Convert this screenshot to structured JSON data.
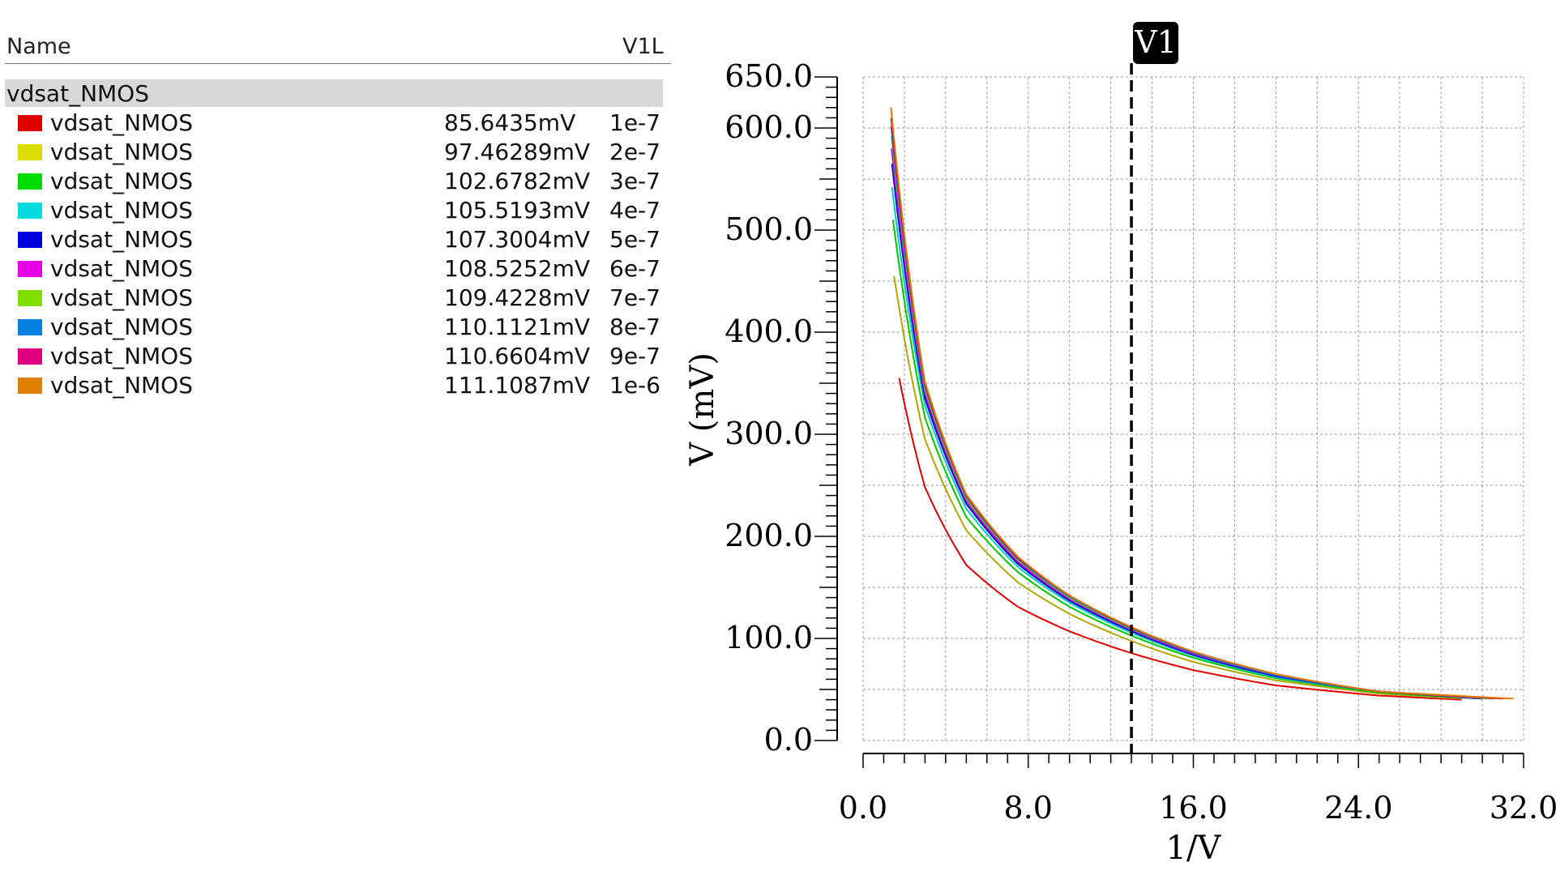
{
  "legend": {
    "header_name": "Name",
    "header_column": "V1L",
    "group": "vdsat_NMOS",
    "entries": [
      {
        "name": "vdsat_NMOS",
        "value": "85.6435mV",
        "param": "1e-7",
        "color": "#e00000"
      },
      {
        "name": "vdsat_NMOS",
        "value": "97.46289mV",
        "param": "2e-7",
        "color": "#dcdc00"
      },
      {
        "name": "vdsat_NMOS",
        "value": "102.6782mV",
        "param": "3e-7",
        "color": "#00dc00"
      },
      {
        "name": "vdsat_NMOS",
        "value": "105.5193mV",
        "param": "4e-7",
        "color": "#00dcdc"
      },
      {
        "name": "vdsat_NMOS",
        "value": "107.3004mV",
        "param": "5e-7",
        "color": "#0000dc"
      },
      {
        "name": "vdsat_NMOS",
        "value": "108.5252mV",
        "param": "6e-7",
        "color": "#e600e6"
      },
      {
        "name": "vdsat_NMOS",
        "value": "109.4228mV",
        "param": "7e-7",
        "color": "#80e000"
      },
      {
        "name": "vdsat_NMOS",
        "value": "110.1121mV",
        "param": "8e-7",
        "color": "#0080e0"
      },
      {
        "name": "vdsat_NMOS",
        "value": "110.6604mV",
        "param": "9e-7",
        "color": "#e00080"
      },
      {
        "name": "vdsat_NMOS",
        "value": "111.1087mV",
        "param": "1e-6",
        "color": "#e08000"
      }
    ]
  },
  "chart_data": {
    "type": "line",
    "xlabel": "1/V",
    "ylabel": "V (mV)",
    "xlim": [
      0,
      32
    ],
    "ylim": [
      0,
      650
    ],
    "xticks": [
      "0.0",
      "8.0",
      "16.0",
      "24.0",
      "32.0"
    ],
    "xtick_values": [
      0,
      8,
      16,
      24,
      32
    ],
    "yticks": [
      "0.0",
      "100.0",
      "200.0",
      "300.0",
      "400.0",
      "500.0",
      "600.0",
      "650.0"
    ],
    "ytick_values": [
      0,
      100,
      200,
      300,
      400,
      500,
      600,
      650
    ],
    "grid": true,
    "cursor": {
      "label": "V1",
      "x": 13.0
    },
    "series": [
      {
        "name": "vdsat_NMOS",
        "param": "1e-7",
        "color": "#e00000",
        "x": [
          1.75,
          3,
          5,
          7.5,
          10,
          13,
          16,
          20,
          25,
          29
        ],
        "y": [
          355,
          248,
          172,
          131,
          107,
          85.6,
          69,
          54,
          44,
          40
        ]
      },
      {
        "name": "vdsat_NMOS",
        "param": "2e-7",
        "color": "#b0a800",
        "x": [
          1.5,
          3,
          5,
          7.5,
          10,
          13,
          16,
          20,
          25,
          29
        ],
        "y": [
          455,
          295,
          206,
          155,
          124,
          97.5,
          77,
          59,
          46,
          41
        ]
      },
      {
        "name": "vdsat_NMOS",
        "param": "3e-7",
        "color": "#00c800",
        "x": [
          1.45,
          3,
          5,
          7.5,
          10,
          13,
          16,
          20,
          25,
          30
        ],
        "y": [
          510,
          316,
          219,
          165,
          131,
          102.7,
          81,
          61,
          47,
          41
        ]
      },
      {
        "name": "vdsat_NMOS",
        "param": "4e-7",
        "color": "#00c8c8",
        "x": [
          1.4,
          3,
          5,
          7.5,
          10,
          13,
          16,
          20,
          25,
          30
        ],
        "y": [
          542,
          328,
          227,
          170,
          135,
          105.5,
          83,
          62,
          48,
          41
        ]
      },
      {
        "name": "vdsat_NMOS",
        "param": "5e-7",
        "color": "#0000dc",
        "x": [
          1.4,
          3,
          5,
          7.5,
          10,
          13,
          16,
          20,
          25,
          30
        ],
        "y": [
          565,
          335,
          232,
          173,
          137,
          107.3,
          84,
          63,
          48,
          41
        ]
      },
      {
        "name": "vdsat_NMOS",
        "param": "6e-7",
        "color": "#d000d0",
        "x": [
          1.38,
          3,
          5,
          7.5,
          10,
          13,
          16,
          20,
          25,
          30.5
        ],
        "y": [
          580,
          340,
          235,
          175,
          139,
          108.5,
          85,
          64,
          48,
          41
        ]
      },
      {
        "name": "vdsat_NMOS",
        "param": "7e-7",
        "color": "#70d000",
        "x": [
          1.38,
          3,
          5,
          7.5,
          10,
          13,
          16,
          20,
          25,
          30.5
        ],
        "y": [
          592,
          344,
          237,
          177,
          140,
          109.4,
          86,
          64,
          48,
          41
        ]
      },
      {
        "name": "vdsat_NMOS",
        "param": "8e-7",
        "color": "#0070d8",
        "x": [
          1.36,
          3,
          5,
          7.5,
          10,
          13,
          16,
          20,
          25,
          31
        ],
        "y": [
          602,
          347,
          239,
          178,
          141,
          110.1,
          86,
          64,
          48,
          41
        ]
      },
      {
        "name": "vdsat_NMOS",
        "param": "9e-7",
        "color": "#d80070",
        "x": [
          1.36,
          3,
          5,
          7.5,
          10,
          13,
          16,
          20,
          25,
          31
        ],
        "y": [
          610,
          349,
          240,
          179,
          142,
          110.7,
          87,
          65,
          48,
          41
        ]
      },
      {
        "name": "vdsat_NMOS",
        "param": "1e-6",
        "color": "#e07800",
        "x": [
          1.35,
          3,
          5,
          7.5,
          10,
          13,
          16,
          20,
          25,
          31.5
        ],
        "y": [
          620,
          351,
          241,
          180,
          142,
          111.1,
          87,
          65,
          48,
          41
        ]
      }
    ]
  }
}
